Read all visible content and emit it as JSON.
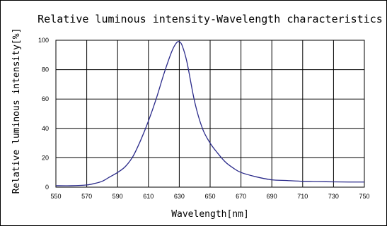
{
  "chart_data": {
    "type": "line",
    "title": "Relative luminous intensity-Wavelength characteristics",
    "xlabel": "Wavelength[nm]",
    "ylabel": "Relative luminous intensity[%]",
    "xlim": [
      550,
      750
    ],
    "ylim": [
      0,
      100
    ],
    "xticks": [
      550,
      570,
      590,
      610,
      630,
      650,
      670,
      690,
      710,
      730,
      750
    ],
    "yticks": [
      0,
      20,
      40,
      60,
      80,
      100
    ],
    "grid": true,
    "series": [
      {
        "color": "#2a2a8a",
        "x": [
          550,
          560,
          570,
          575,
          580,
          585,
          590,
          595,
          600,
          605,
          610,
          615,
          620,
          625,
          628,
          630,
          632,
          635,
          640,
          645,
          650,
          655,
          660,
          665,
          670,
          680,
          690,
          700,
          710,
          720,
          730,
          740,
          750
        ],
        "y": [
          1,
          1,
          1.5,
          2.5,
          4,
          7,
          10,
          14,
          21,
          32,
          45,
          60,
          77,
          92,
          98,
          99,
          96,
          85,
          58,
          40,
          30,
          23,
          17,
          13,
          10,
          7,
          5,
          4.5,
          4,
          3.8,
          3.6,
          3.5,
          3.5
        ]
      }
    ]
  }
}
